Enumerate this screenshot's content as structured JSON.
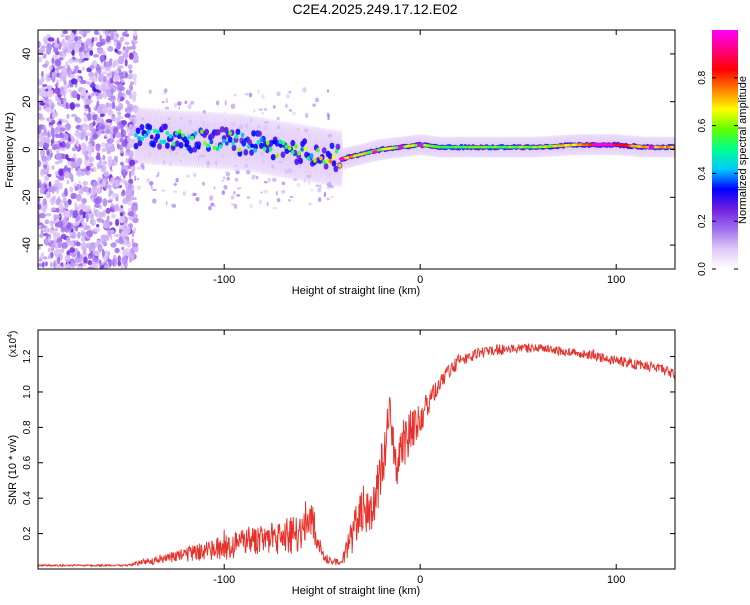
{
  "title": "C2E4.2025.249.17.12.E02",
  "chart_data": [
    {
      "type": "heatmap",
      "name": "spectrogram",
      "xlabel": "Height of straight line (km)",
      "ylabel": "Frequency (Hz)",
      "xlim": [
        -195,
        130
      ],
      "ylim": [
        -50,
        50
      ],
      "xticks": [
        -100,
        0,
        100
      ],
      "yticks": [
        -40,
        -20,
        0,
        20,
        40
      ],
      "colorbar": {
        "label": "Normalized spectral amplitude",
        "range": [
          0,
          1
        ],
        "ticks": [
          0.0,
          0.2,
          0.4,
          0.6,
          0.8
        ],
        "colormap": [
          "#ffffff",
          "#e0c8f8",
          "#a070f0",
          "#7020e0",
          "#0000ff",
          "#00c8ff",
          "#00ff90",
          "#60ff00",
          "#ffff00",
          "#ff8000",
          "#ff0000",
          "#ff0080",
          "#ff00ff"
        ]
      },
      "ridge": {
        "x": [
          -145,
          -130,
          -110,
          -90,
          -70,
          -55,
          -40,
          -30,
          -20,
          -10,
          0,
          10,
          20,
          40,
          60,
          80,
          100,
          115,
          130
        ],
        "freq": [
          6,
          5,
          4,
          3,
          0,
          -2,
          -4,
          -2,
          0,
          1,
          2,
          1,
          1,
          1,
          1,
          2,
          2,
          1,
          1
        ],
        "amplitude": [
          0.45,
          0.5,
          0.5,
          0.55,
          0.55,
          0.6,
          0.75,
          0.65,
          0.6,
          0.65,
          0.6,
          0.55,
          0.55,
          0.55,
          0.6,
          0.7,
          0.85,
          0.7,
          0.7
        ]
      },
      "noise_region_x": [
        -195,
        -145
      ]
    },
    {
      "type": "line",
      "name": "snr",
      "xlabel": "Height of straight line (km)",
      "ylabel": "SNR (10 * v/v)",
      "scale_label": "(x10",
      "scale_exponent": "4",
      "xlim": [
        -195,
        130
      ],
      "ylim": [
        0,
        1.35
      ],
      "xticks": [
        -100,
        0,
        100
      ],
      "yticks": [
        0.2,
        0.4,
        0.6,
        0.8,
        1.0,
        1.2
      ],
      "color": "#e8302a",
      "x": [
        -195,
        -150,
        -140,
        -120,
        -100,
        -80,
        -70,
        -60,
        -55,
        -50,
        -45,
        -40,
        -35,
        -30,
        -25,
        -20,
        -15,
        -12,
        -10,
        -5,
        0,
        5,
        10,
        15,
        20,
        30,
        40,
        60,
        80,
        100,
        120,
        130
      ],
      "y": [
        0.02,
        0.02,
        0.04,
        0.08,
        0.12,
        0.18,
        0.16,
        0.22,
        0.26,
        0.08,
        0.04,
        0.04,
        0.18,
        0.33,
        0.32,
        0.55,
        0.85,
        0.48,
        0.68,
        0.78,
        0.85,
        0.95,
        1.05,
        1.12,
        1.18,
        1.22,
        1.24,
        1.25,
        1.22,
        1.18,
        1.14,
        1.1
      ],
      "noise": [
        0.005,
        0.005,
        0.02,
        0.04,
        0.07,
        0.09,
        0.1,
        0.12,
        0.12,
        0.04,
        0.02,
        0.02,
        0.1,
        0.12,
        0.12,
        0.15,
        0.18,
        0.1,
        0.14,
        0.12,
        0.1,
        0.06,
        0.05,
        0.04,
        0.04,
        0.03,
        0.03,
        0.025,
        0.025,
        0.03,
        0.03,
        0.03
      ]
    }
  ]
}
